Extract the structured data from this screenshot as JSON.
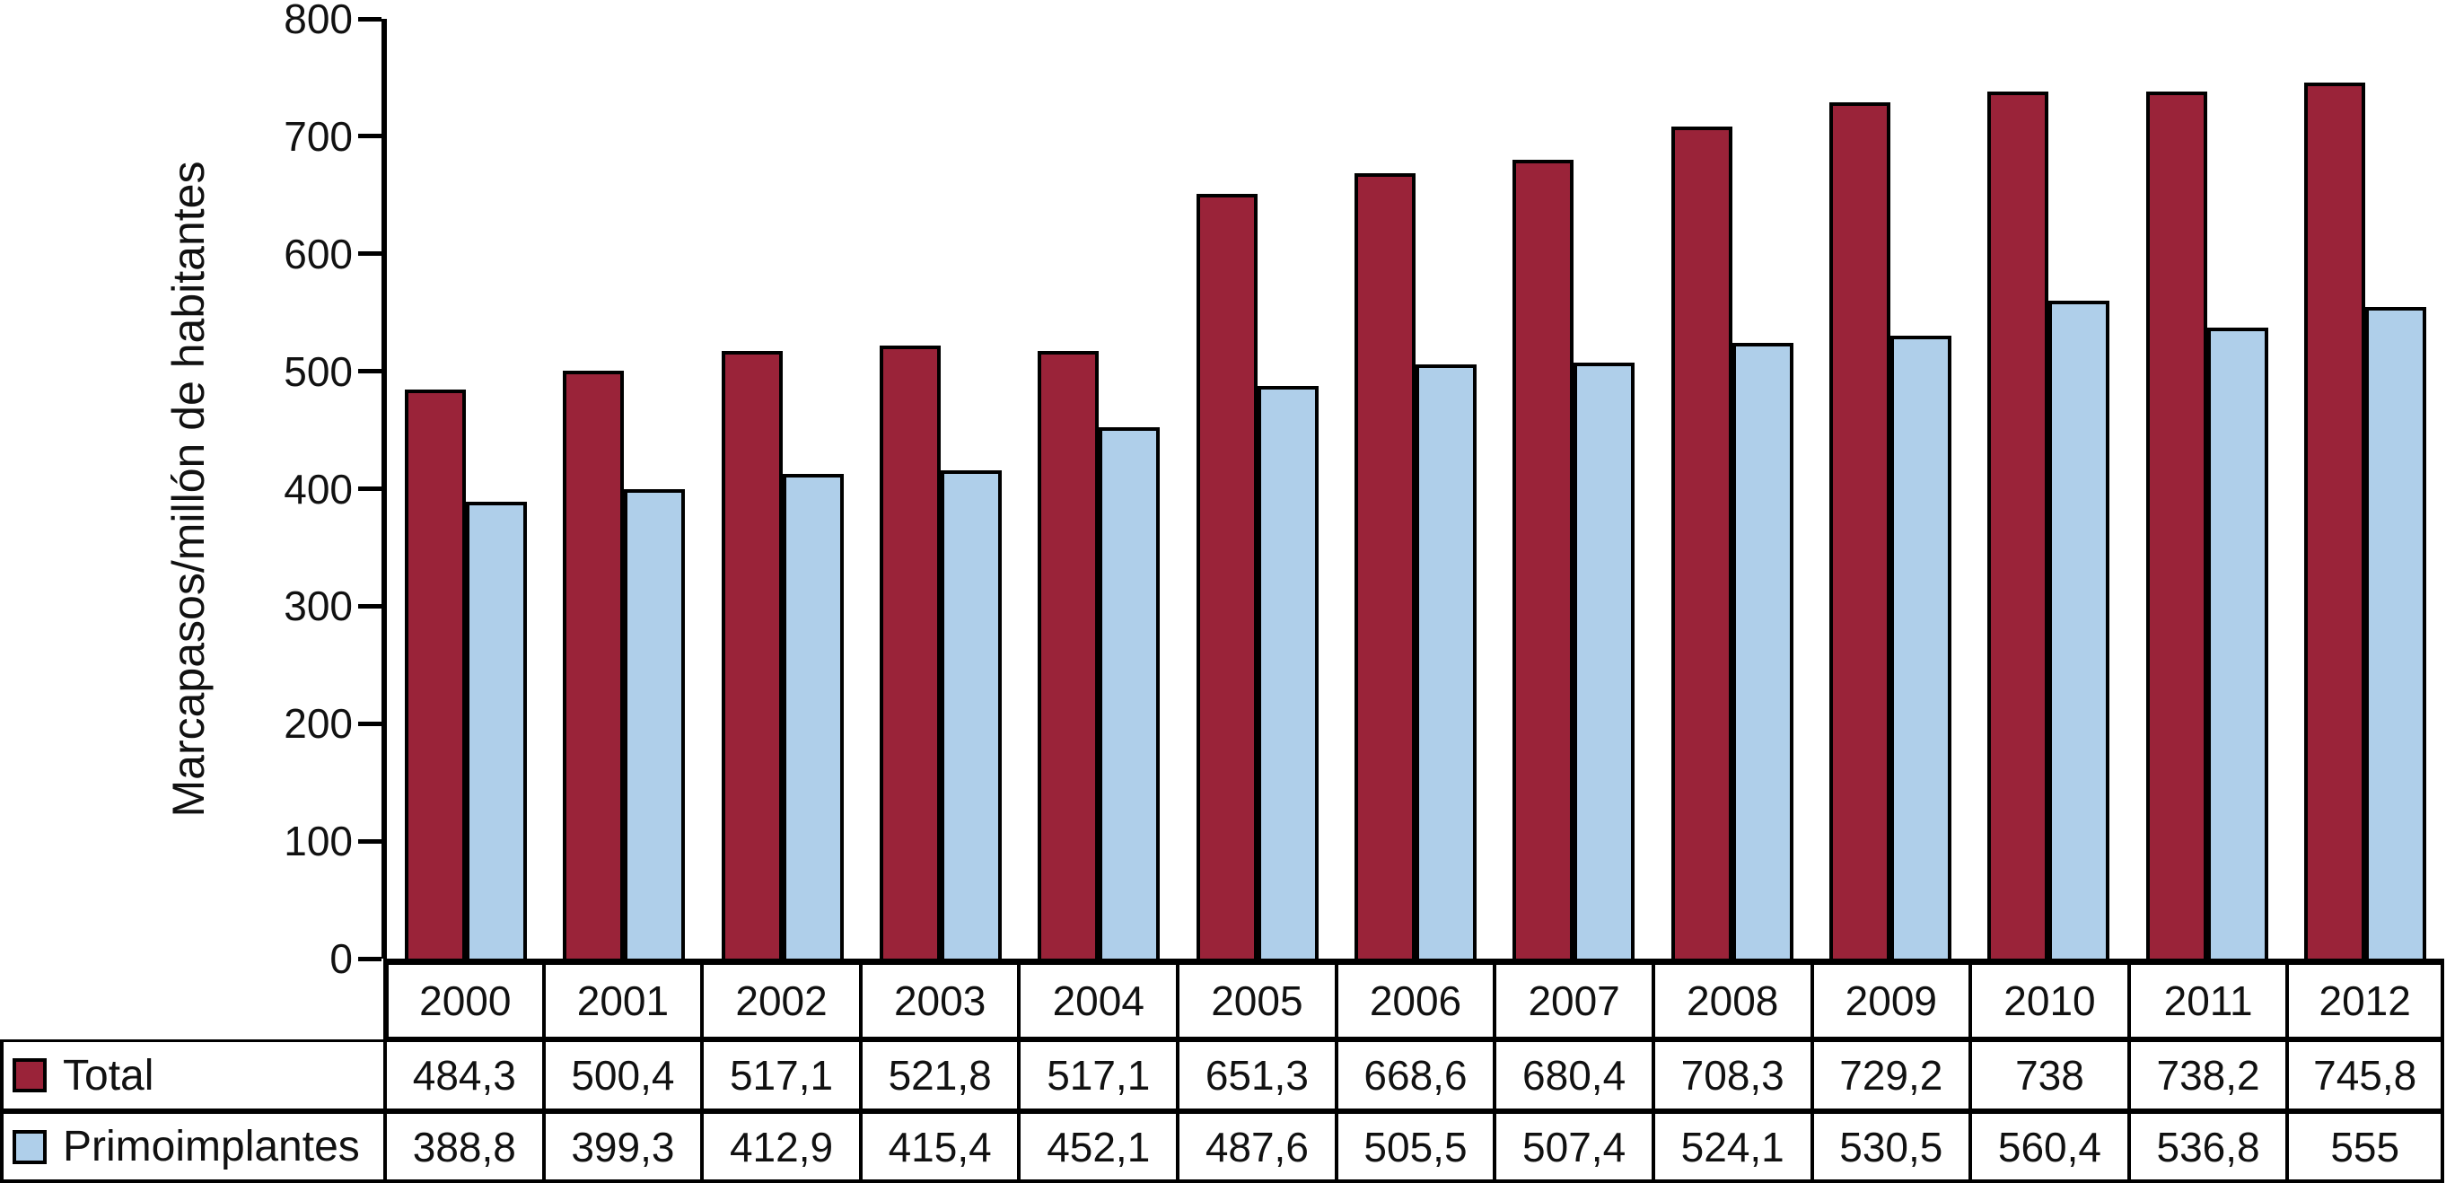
{
  "chart_data": {
    "type": "bar",
    "title": "",
    "xlabel": "",
    "ylabel": "Marcapasos/millón de habitantes",
    "ylim": [
      0,
      800
    ],
    "ytick_step": 100,
    "grid": false,
    "legend_position": "table-left-column",
    "categories": [
      "2000",
      "2001",
      "2002",
      "2003",
      "2004",
      "2005",
      "2006",
      "2007",
      "2008",
      "2009",
      "2010",
      "2011",
      "2012"
    ],
    "series": [
      {
        "name": "Total",
        "color": "#9A2339",
        "values": [
          484.3,
          500.4,
          517.1,
          521.8,
          517.1,
          651.3,
          668.6,
          680.4,
          708.3,
          729.2,
          738,
          738.2,
          745.8
        ],
        "labels": [
          "484,3",
          "500,4",
          "517,1",
          "521,8",
          "517,1",
          "651,3",
          "668,6",
          "680,4",
          "708,3",
          "729,2",
          "738",
          "738,2",
          "745,8"
        ]
      },
      {
        "name": "Primoimplantes",
        "color": "#AFCFEA",
        "values": [
          388.8,
          399.3,
          412.9,
          415.4,
          452.1,
          487.6,
          505.5,
          507.4,
          524.1,
          530.5,
          560.4,
          536.8,
          555
        ],
        "labels": [
          "388,8",
          "399,3",
          "412,9",
          "415,4",
          "452,1",
          "487,6",
          "505,5",
          "507,4",
          "524,1",
          "530,5",
          "560,4",
          "536,8",
          "555"
        ]
      }
    ]
  },
  "colors": {
    "bar_border": "#000000",
    "axis": "#000000",
    "text": "#111111",
    "background": "#ffffff"
  }
}
